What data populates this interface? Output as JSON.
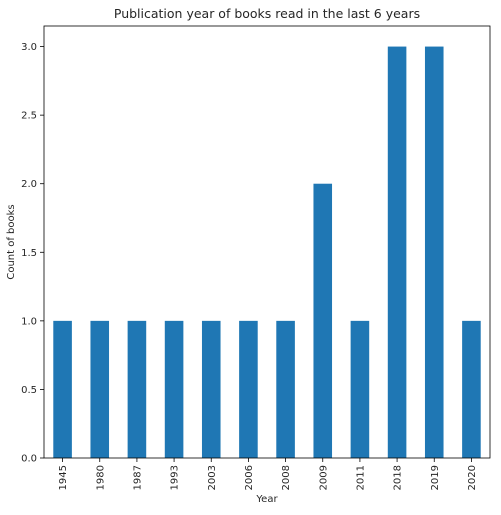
{
  "chart_data": {
    "type": "bar",
    "title": "Publication year of books read in the last 6 years",
    "xlabel": "Year",
    "ylabel": "Count of books",
    "categories": [
      "1945",
      "1980",
      "1987",
      "1993",
      "2003",
      "2006",
      "2008",
      "2009",
      "2011",
      "2018",
      "2019",
      "2020"
    ],
    "values": [
      1,
      1,
      1,
      1,
      1,
      1,
      1,
      2,
      1,
      3,
      3,
      1
    ],
    "ylim": [
      0,
      3.15
    ],
    "yticks": [
      "0.0",
      "0.5",
      "1.0",
      "1.5",
      "2.0",
      "2.5",
      "3.0"
    ],
    "bar_color": "#1f77b4",
    "grid": false,
    "legend": "none"
  }
}
